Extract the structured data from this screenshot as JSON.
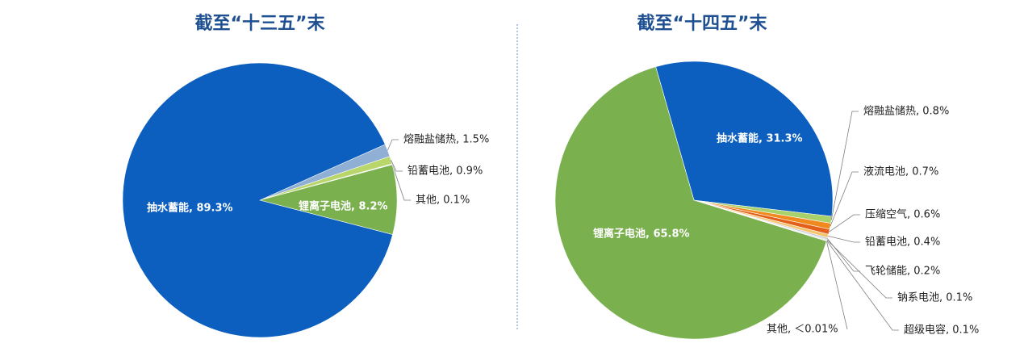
{
  "chart_data": [
    {
      "type": "pie",
      "title": "截至“十三五”末",
      "labels": [
        "熔融盐储热, 1.5%",
        "铅蓄电池, 0.9%",
        "其他, 0.1%",
        "锂离子电池, 8.2%",
        "抽水蓄能, 89.3%"
      ],
      "values": [
        1.5,
        0.9,
        0.1,
        8.2,
        89.3
      ],
      "colors": [
        "#8fb0d4",
        "#b9d66a",
        "#e8eef6",
        "#7bb04f",
        "#0c5fbf"
      ]
    },
    {
      "type": "pie",
      "title": "截至“十四五”末",
      "labels": [
        "抽水蓄能, 31.3%",
        "熔融盐储热, 0.8%",
        "液流电池, 0.7%",
        "压缩空气, 0.6%",
        "铅蓄电池, 0.4%",
        "飞轮储能, 0.2%",
        "钠系电池, 0.1%",
        "超级电容, 0.1%",
        "其他, ＜0.01%",
        "锂离子电池, 65.8%"
      ],
      "values": [
        31.3,
        0.8,
        0.7,
        0.6,
        0.4,
        0.2,
        0.1,
        0.1,
        0.005,
        65.8
      ],
      "colors": [
        "#0c5fbf",
        "#a9d16b",
        "#f08a1e",
        "#e2601a",
        "#f6c36d",
        "#c9c9c9",
        "#9fb7d6",
        "#d9d9d9",
        "#eeeeee",
        "#7bb04f"
      ]
    }
  ]
}
